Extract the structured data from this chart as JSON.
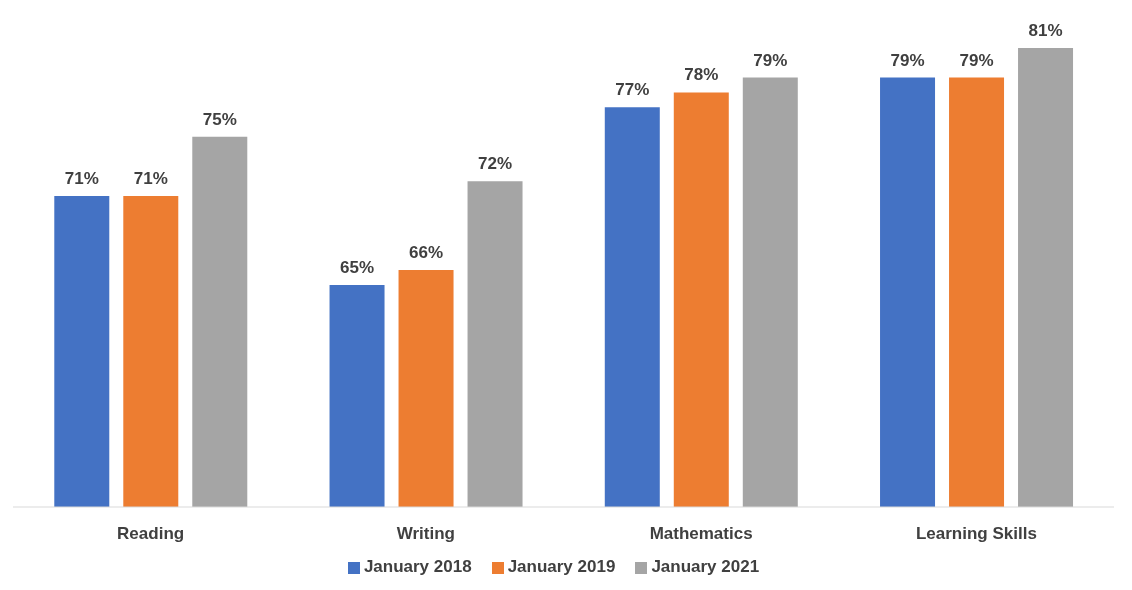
{
  "chart_data": {
    "type": "bar",
    "categories": [
      "Reading",
      "Writing",
      "Mathematics",
      "Learning Skills"
    ],
    "series": [
      {
        "name": "January 2018",
        "color": "#4472c4",
        "values": [
          71,
          65,
          77,
          79
        ],
        "value_labels": [
          "71%",
          "65%",
          "77%",
          "79%"
        ]
      },
      {
        "name": "January 2019",
        "color": "#ed7d31",
        "values": [
          71,
          66,
          78,
          79
        ],
        "value_labels": [
          "71%",
          "66%",
          "78%",
          "79%"
        ]
      },
      {
        "name": "January 2021",
        "color": "#a5a5a5",
        "values": [
          75,
          72,
          79,
          81
        ],
        "value_labels": [
          "75%",
          "72%",
          "79%",
          "81%"
        ]
      }
    ],
    "ylim": [
      50,
      81
    ],
    "tick_labels": "x",
    "grid": false,
    "legend": "bottom"
  }
}
